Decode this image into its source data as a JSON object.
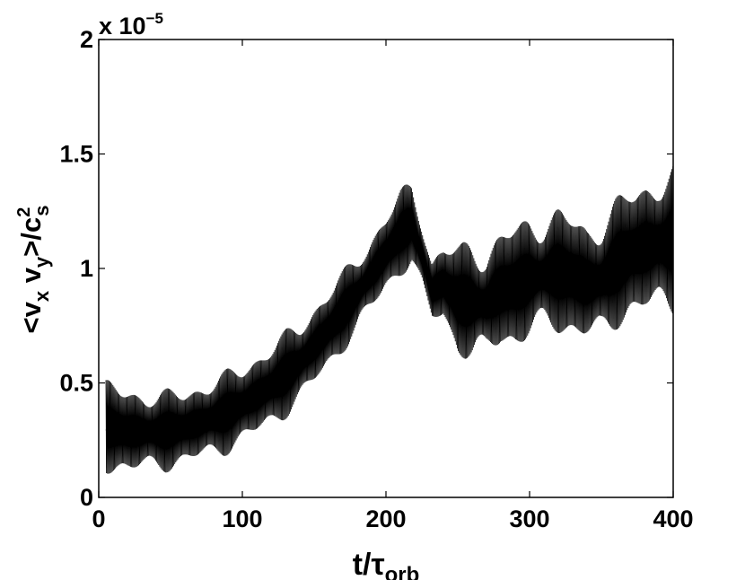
{
  "chart_data": {
    "type": "line",
    "title": "",
    "xlabel": "t/τ_orb",
    "ylabel": "<v_x v_y>/c_s^2",
    "xlim": [
      0,
      400
    ],
    "ylim": [
      0,
      2e-05
    ],
    "y_multiplier_label": {
      "base": "x 10",
      "exponent": "−5"
    },
    "xticks": [
      0,
      100,
      200,
      300,
      400
    ],
    "xtick_labels": [
      "0",
      "100",
      "200",
      "300",
      "400"
    ],
    "yticks": [
      0,
      5e-06,
      1e-05,
      1.5e-05,
      2e-05
    ],
    "ytick_labels": [
      "0",
      "0.5",
      "1",
      "1.5",
      "2"
    ],
    "grid": false,
    "line_color": "#000000",
    "series": [
      {
        "style": "rapidly oscillating line (dense vertical band)",
        "x": [
          5,
          20,
          40,
          60,
          80,
          100,
          120,
          140,
          160,
          180,
          200,
          210,
          218,
          225,
          232,
          240,
          250,
          260,
          270,
          280,
          290,
          300,
          310,
          320,
          330,
          340,
          350,
          360,
          370,
          380,
          390,
          400
        ],
        "mean": [
          3e-06,
          2.9e-06,
          2.9e-06,
          3.1e-06,
          3.5e-06,
          4.1e-06,
          4.9e-06,
          5.9e-06,
          7.3e-06,
          8.9e-06,
          1.07e-05,
          1.15e-05,
          1.17e-05,
          1.05e-05,
          8.9e-06,
          9e-06,
          8.7e-06,
          8.5e-06,
          8.3e-06,
          9.1e-06,
          9.4e-06,
          9.5e-06,
          9.5e-06,
          9.6e-06,
          9.5e-06,
          9.2e-06,
          9.5e-06,
          1e-05,
          1.06e-05,
          1.08e-05,
          1.11e-05,
          1.1e-05
        ],
        "band_low": [
          1e-06,
          8e-07,
          1e-06,
          1.2e-06,
          1.6e-06,
          2.1e-06,
          2.9e-06,
          3.9e-06,
          5.5e-06,
          7e-06,
          8.9e-06,
          9.5e-06,
          1e-05,
          8.8e-06,
          7.6e-06,
          7.8e-06,
          6e-06,
          5.6e-06,
          6e-06,
          6.5e-06,
          6.2e-06,
          6.6e-06,
          7.2e-06,
          7e-06,
          6.8e-06,
          6.7e-06,
          6.5e-06,
          7.2e-06,
          7.6e-06,
          7.8e-06,
          7.6e-06,
          7.8e-06
        ],
        "band_high": [
          5.2e-06,
          5e-06,
          4.7e-06,
          4.9e-06,
          5.3e-06,
          6e-06,
          6.8e-06,
          7.9e-06,
          9.2e-06,
          1.08e-05,
          1.24e-05,
          1.36e-05,
          1.4e-05,
          1.26e-05,
          1.06e-05,
          1.11e-05,
          1.13e-05,
          1.15e-05,
          1.12e-05,
          1.17e-05,
          1.22e-05,
          1.26e-05,
          1.27e-05,
          1.28e-05,
          1.27e-05,
          1.22e-05,
          1.25e-05,
          1.32e-05,
          1.38e-05,
          1.41e-05,
          1.45e-05,
          1.47e-05
        ]
      }
    ]
  }
}
